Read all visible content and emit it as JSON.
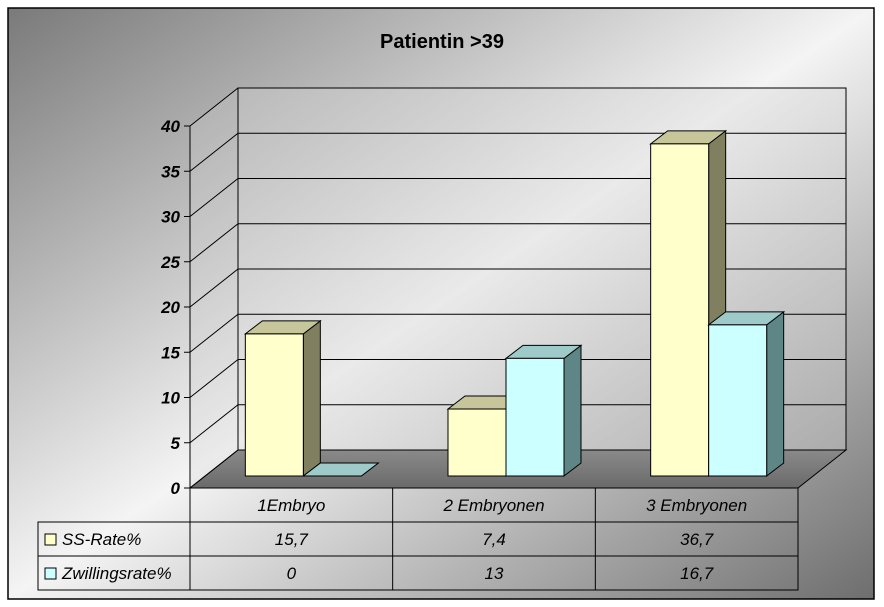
{
  "chart_data": {
    "type": "bar",
    "title": "Patientin >39",
    "categories": [
      "1Embryo",
      "2 Embryonen",
      "3 Embryonen"
    ],
    "series": [
      {
        "name": "SS-Rate%",
        "values": [
          15.7,
          7.4,
          36.7
        ],
        "value_labels": [
          "15,7",
          "7,4",
          "36,7"
        ],
        "color": "#ffffcc",
        "side_color": "#808060",
        "top_color": "#c6c69a"
      },
      {
        "name": "Zwillingsrate%",
        "values": [
          0,
          13,
          16.7
        ],
        "value_labels": [
          "0",
          "13",
          "16,7"
        ],
        "color": "#ccffff",
        "side_color": "#5f8686",
        "top_color": "#9ecaca"
      }
    ],
    "ylim": [
      0,
      40
    ],
    "yticks": [
      0,
      5,
      10,
      15,
      20,
      25,
      30,
      35,
      40
    ],
    "grid": true,
    "legend": "data-table",
    "xlabel": "",
    "ylabel": ""
  }
}
